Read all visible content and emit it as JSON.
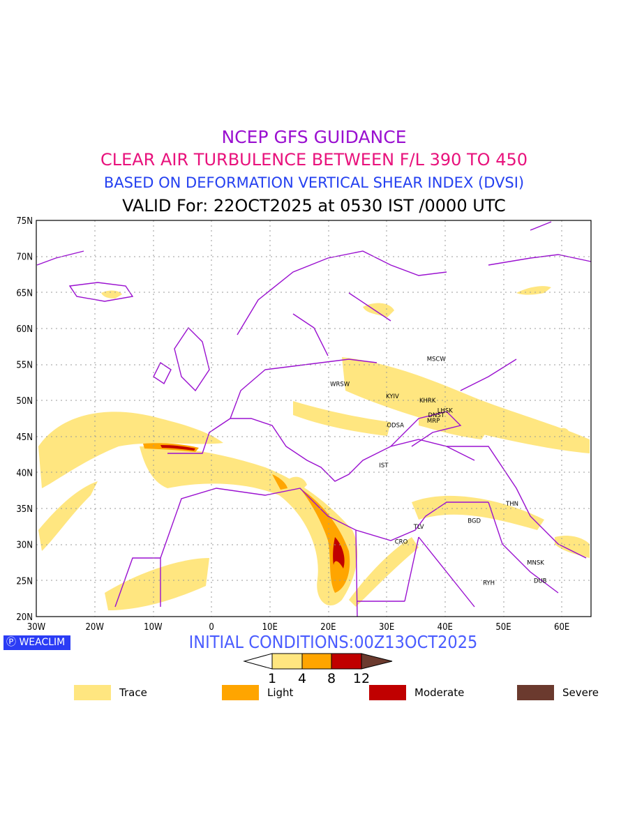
{
  "title": {
    "line1": "NCEP GFS GUIDANCE",
    "line2": "CLEAR AIR TURBULENCE BETWEEN F/L 390 TO 450",
    "line3": "BASED ON DEFORMATION VERTICAL SHEAR INDEX (DVSI)",
    "line4": "VALID For: 22OCT2025 at 0530 IST /0000 UTC"
  },
  "axes": {
    "lat_ticks": [
      "75N",
      "70N",
      "65N",
      "60N",
      "55N",
      "50N",
      "45N",
      "40N",
      "35N",
      "30N",
      "25N",
      "20N"
    ],
    "lon_ticks": [
      "30W",
      "20W",
      "10W",
      "0",
      "10E",
      "20E",
      "30E",
      "40E",
      "50E",
      "60E"
    ]
  },
  "cities": [
    {
      "code": "MSCW",
      "lon": 38.5,
      "lat": 55.8
    },
    {
      "code": "WRSW",
      "lon": 22,
      "lat": 52.3
    },
    {
      "code": "KYIV",
      "lon": 31,
      "lat": 50.6
    },
    {
      "code": "KHRK",
      "lon": 37,
      "lat": 50
    },
    {
      "code": "LHSK",
      "lon": 40,
      "lat": 48.6
    },
    {
      "code": "DNST",
      "lon": 38.5,
      "lat": 48
    },
    {
      "code": "MRP",
      "lon": 38,
      "lat": 47.2
    },
    {
      "code": "ODSA",
      "lon": 31.5,
      "lat": 46.6
    },
    {
      "code": "IST",
      "lon": 29.5,
      "lat": 41
    },
    {
      "code": "THN",
      "lon": 51.5,
      "lat": 35.7
    },
    {
      "code": "BGD",
      "lon": 45,
      "lat": 33.3
    },
    {
      "code": "TLV",
      "lon": 35.5,
      "lat": 32.5
    },
    {
      "code": "CRO",
      "lon": 32.5,
      "lat": 30.4
    },
    {
      "code": "MNSK",
      "lon": 55.5,
      "lat": 27.5
    },
    {
      "code": "DUB",
      "lon": 56.3,
      "lat": 25
    },
    {
      "code": "RYH",
      "lon": 47.5,
      "lat": 24.7
    }
  ],
  "logo": "WEACLIM",
  "initial_conditions": "INITIAL CONDITIONS:00Z13OCT2025",
  "colorbar": {
    "ticks": [
      "1",
      "4",
      "8",
      "12"
    ],
    "colors": [
      "#ffe680",
      "#ffa500",
      "#c00000",
      "#6b3a2e"
    ]
  },
  "legend": [
    {
      "label": "Trace",
      "color": "#ffe680"
    },
    {
      "label": "Light",
      "color": "#ffa500"
    },
    {
      "label": "Moderate",
      "color": "#c00000"
    },
    {
      "label": "Severe",
      "color": "#6b3a2e"
    }
  ]
}
